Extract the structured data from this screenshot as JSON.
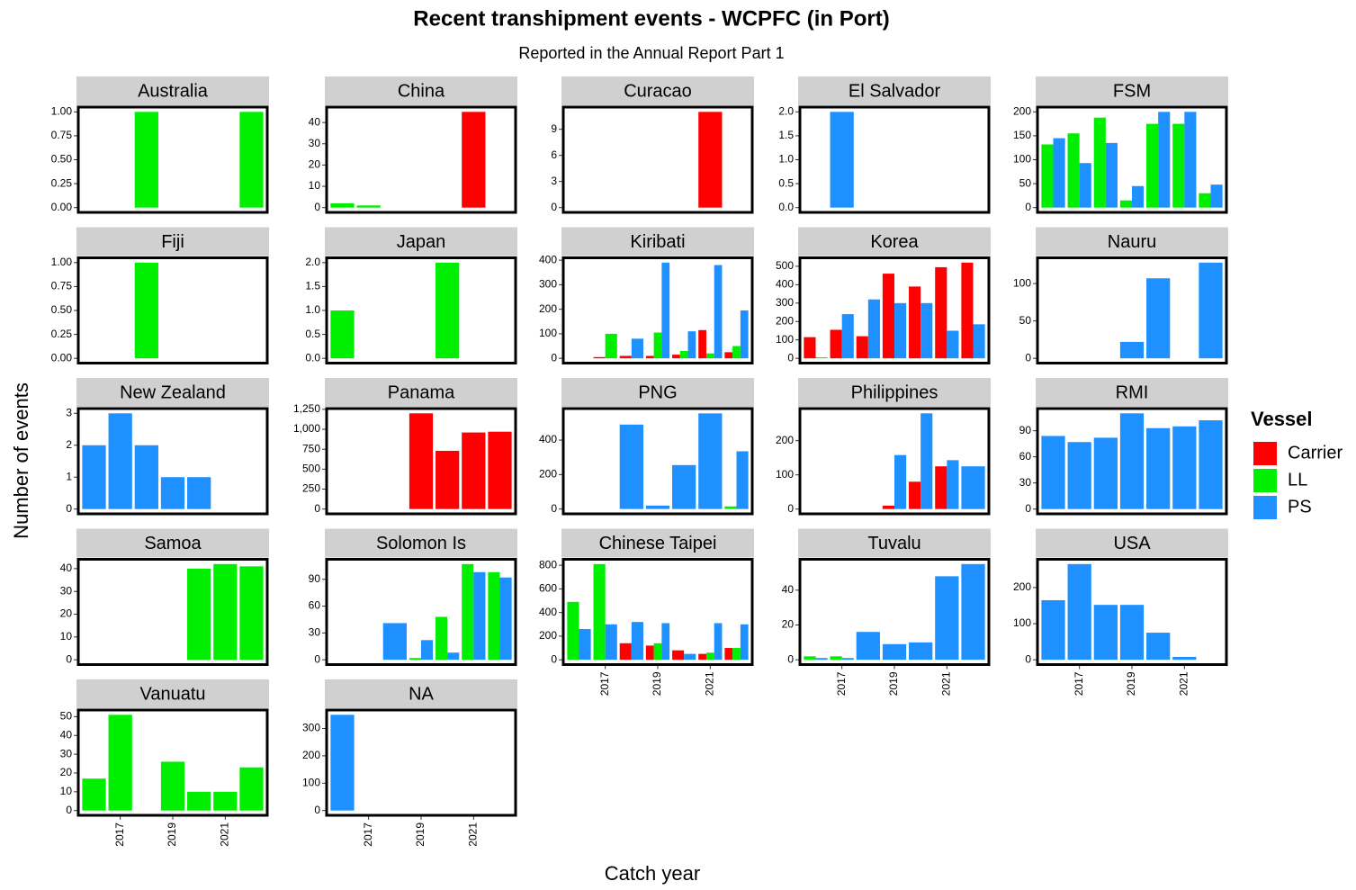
{
  "title": "Recent transhipment events - WCPFC (in Port)",
  "subtitle": "Reported in the Annual Report Part 1",
  "x_label": "Catch year",
  "y_label": "Number of events",
  "legend": {
    "title": "Vessel",
    "position": "right",
    "items": [
      {
        "name": "Carrier",
        "color": "#ff0000"
      },
      {
        "name": "LL",
        "color": "#00ee00"
      },
      {
        "name": "PS",
        "color": "#1e90ff"
      }
    ]
  },
  "chart_data": [
    {
      "type": "bar",
      "title": "Australia",
      "x": [
        2016,
        2017,
        2018,
        2019,
        2020,
        2021,
        2022
      ],
      "xlim": [
        2015.4,
        2022.6
      ],
      "ylim": [
        -0.05,
        1.05
      ],
      "yticks": [
        {
          "value": 0,
          "label": "0.00"
        },
        {
          "value": 0.25,
          "label": "0.25"
        },
        {
          "value": 0.5,
          "label": "0.50"
        },
        {
          "value": 0.75,
          "label": "0.75"
        },
        {
          "value": 1,
          "label": "1.00"
        }
      ],
      "series": [
        {
          "name": "LL",
          "color": "#00ee00",
          "values": [
            null,
            null,
            1,
            null,
            null,
            null,
            1
          ]
        }
      ]
    },
    {
      "type": "bar",
      "title": "China",
      "x": [
        2016,
        2017,
        2018,
        2019,
        2020,
        2021,
        2022
      ],
      "xlim": [
        2015.4,
        2022.6
      ],
      "ylim": [
        -2.25,
        47.25
      ],
      "yticks": [
        0,
        10,
        20,
        30,
        40
      ],
      "series": [
        {
          "name": "Carrier",
          "color": "#ff0000",
          "values": [
            null,
            null,
            null,
            null,
            null,
            45,
            null
          ]
        },
        {
          "name": "LL",
          "color": "#00ee00",
          "values": [
            2,
            1,
            null,
            null,
            null,
            null,
            null
          ]
        }
      ]
    },
    {
      "type": "bar",
      "title": "Curacao",
      "x": [
        2016,
        2017,
        2018,
        2019,
        2020,
        2021,
        2022
      ],
      "xlim": [
        2015.4,
        2022.6
      ],
      "ylim": [
        -0.55,
        11.55
      ],
      "yticks": [
        0,
        3,
        6,
        9
      ],
      "series": [
        {
          "name": "Carrier",
          "color": "#ff0000",
          "values": [
            null,
            null,
            null,
            null,
            null,
            11,
            null
          ]
        }
      ]
    },
    {
      "type": "bar",
      "title": "El Salvador",
      "x": [
        2016,
        2017,
        2018,
        2019,
        2020,
        2021,
        2022
      ],
      "xlim": [
        2015.4,
        2022.6
      ],
      "ylim": [
        -0.1,
        2.1
      ],
      "yticks": [
        {
          "value": 0,
          "label": "0.0"
        },
        {
          "value": 0.5,
          "label": "0.5"
        },
        {
          "value": 1,
          "label": "1.0"
        },
        {
          "value": 1.5,
          "label": "1.5"
        },
        {
          "value": 2,
          "label": "2.0"
        }
      ],
      "series": [
        {
          "name": "PS",
          "color": "#1e90ff",
          "values": [
            null,
            2,
            null,
            null,
            null,
            null,
            null
          ]
        }
      ]
    },
    {
      "type": "bar",
      "title": "FSM",
      "x": [
        2016,
        2017,
        2018,
        2019,
        2020,
        2021,
        2022
      ],
      "xlim": [
        2015.4,
        2022.6
      ],
      "ylim": [
        -10,
        210
      ],
      "yticks": [
        0,
        50,
        100,
        150,
        200
      ],
      "series": [
        {
          "name": "LL",
          "color": "#00ee00",
          "values": [
            132,
            155,
            188,
            15,
            175,
            175,
            30
          ]
        },
        {
          "name": "PS",
          "color": "#1e90ff",
          "values": [
            145,
            93,
            135,
            45,
            200,
            200,
            48
          ]
        }
      ]
    },
    {
      "type": "bar",
      "title": "Fiji",
      "x": [
        2016,
        2017,
        2018,
        2019,
        2020,
        2021,
        2022
      ],
      "xlim": [
        2015.4,
        2022.6
      ],
      "ylim": [
        -0.05,
        1.05
      ],
      "yticks": [
        {
          "value": 0,
          "label": "0.00"
        },
        {
          "value": 0.25,
          "label": "0.25"
        },
        {
          "value": 0.5,
          "label": "0.50"
        },
        {
          "value": 0.75,
          "label": "0.75"
        },
        {
          "value": 1,
          "label": "1.00"
        }
      ],
      "series": [
        {
          "name": "LL",
          "color": "#00ee00",
          "values": [
            null,
            null,
            1,
            null,
            null,
            null,
            null
          ]
        }
      ]
    },
    {
      "type": "bar",
      "title": "Japan",
      "x": [
        2016,
        2017,
        2018,
        2019,
        2020,
        2021,
        2022
      ],
      "xlim": [
        2015.4,
        2022.6
      ],
      "ylim": [
        -0.1,
        2.1
      ],
      "yticks": [
        {
          "value": 0,
          "label": "0.0"
        },
        {
          "value": 0.5,
          "label": "0.5"
        },
        {
          "value": 1,
          "label": "1.0"
        },
        {
          "value": 1.5,
          "label": "1.5"
        },
        {
          "value": 2,
          "label": "2.0"
        }
      ],
      "series": [
        {
          "name": "LL",
          "color": "#00ee00",
          "values": [
            1,
            null,
            null,
            null,
            2,
            null,
            null
          ]
        }
      ]
    },
    {
      "type": "bar",
      "title": "Kiribati",
      "x": [
        2016,
        2017,
        2018,
        2019,
        2020,
        2021,
        2022
      ],
      "xlim": [
        2015.4,
        2022.6
      ],
      "ylim": [
        -19.5,
        409.5
      ],
      "yticks": [
        0,
        100,
        200,
        300,
        400
      ],
      "series": [
        {
          "name": "Carrier",
          "color": "#ff0000",
          "values": [
            null,
            5,
            10,
            10,
            15,
            115,
            25
          ]
        },
        {
          "name": "LL",
          "color": "#00ee00",
          "values": [
            null,
            100,
            null,
            105,
            30,
            20,
            50
          ]
        },
        {
          "name": "PS",
          "color": "#1e90ff",
          "values": [
            null,
            null,
            80,
            390,
            110,
            380,
            195
          ]
        }
      ]
    },
    {
      "type": "bar",
      "title": "Korea",
      "x": [
        2016,
        2017,
        2018,
        2019,
        2020,
        2021,
        2022
      ],
      "xlim": [
        2015.4,
        2022.6
      ],
      "ylim": [
        -26,
        546
      ],
      "yticks": [
        0,
        100,
        200,
        300,
        400,
        500
      ],
      "series": [
        {
          "name": "Carrier",
          "color": "#ff0000",
          "values": [
            115,
            155,
            120,
            460,
            390,
            495,
            520
          ]
        },
        {
          "name": "LL",
          "color": "#00ee00",
          "values": [
            5,
            null,
            null,
            null,
            null,
            null,
            null
          ]
        },
        {
          "name": "PS",
          "color": "#1e90ff",
          "values": [
            null,
            240,
            320,
            300,
            300,
            150,
            185
          ]
        }
      ]
    },
    {
      "type": "bar",
      "title": "Nauru",
      "x": [
        2016,
        2017,
        2018,
        2019,
        2020,
        2021,
        2022
      ],
      "xlim": [
        2015.4,
        2022.6
      ],
      "ylim": [
        -6.4,
        134.4
      ],
      "yticks": [
        0,
        50,
        100
      ],
      "series": [
        {
          "name": "PS",
          "color": "#1e90ff",
          "values": [
            null,
            null,
            null,
            22,
            107,
            null,
            128
          ]
        }
      ]
    },
    {
      "type": "bar",
      "title": "New Zealand",
      "x": [
        2016,
        2017,
        2018,
        2019,
        2020,
        2021,
        2022
      ],
      "xlim": [
        2015.4,
        2022.6
      ],
      "ylim": [
        -0.15,
        3.15
      ],
      "yticks": [
        0,
        1,
        2,
        3
      ],
      "series": [
        {
          "name": "PS",
          "color": "#1e90ff",
          "values": [
            2,
            3,
            2,
            1,
            1,
            null,
            null
          ]
        }
      ]
    },
    {
      "type": "bar",
      "title": "Panama",
      "x": [
        2016,
        2017,
        2018,
        2019,
        2020,
        2021,
        2022
      ],
      "xlim": [
        2015.4,
        2022.6
      ],
      "ylim": [
        -60,
        1260
      ],
      "yticks": [
        0,
        250,
        500,
        750,
        {
          "value": 1000,
          "label": "1,000"
        },
        {
          "value": 1250,
          "label": "1,250"
        }
      ],
      "series": [
        {
          "name": "Carrier",
          "color": "#ff0000",
          "values": [
            null,
            null,
            null,
            1200,
            730,
            960,
            970
          ]
        }
      ]
    },
    {
      "type": "bar",
      "title": "PNG",
      "x": [
        2016,
        2017,
        2018,
        2019,
        2020,
        2021,
        2022
      ],
      "xlim": [
        2015.4,
        2022.6
      ],
      "ylim": [
        -28,
        583
      ],
      "yticks": [
        0,
        200,
        400
      ],
      "series": [
        {
          "name": "LL",
          "color": "#00ee00",
          "values": [
            null,
            null,
            null,
            null,
            null,
            null,
            15
          ]
        },
        {
          "name": "PS",
          "color": "#1e90ff",
          "values": [
            null,
            null,
            490,
            20,
            255,
            555,
            335
          ]
        }
      ]
    },
    {
      "type": "bar",
      "title": "Philippines",
      "x": [
        2016,
        2017,
        2018,
        2019,
        2020,
        2021,
        2022
      ],
      "xlim": [
        2015.4,
        2022.6
      ],
      "ylim": [
        -14,
        294
      ],
      "yticks": [
        0,
        100,
        200
      ],
      "series": [
        {
          "name": "Carrier",
          "color": "#ff0000",
          "values": [
            null,
            null,
            null,
            10,
            80,
            125,
            null
          ]
        },
        {
          "name": "PS",
          "color": "#1e90ff",
          "values": [
            null,
            null,
            null,
            158,
            280,
            143,
            125
          ]
        }
      ]
    },
    {
      "type": "bar",
      "title": "RMI",
      "x": [
        2016,
        2017,
        2018,
        2019,
        2020,
        2021,
        2022
      ],
      "xlim": [
        2015.4,
        2022.6
      ],
      "ylim": [
        -5.5,
        115.5
      ],
      "yticks": [
        0,
        30,
        60,
        90
      ],
      "series": [
        {
          "name": "PS",
          "color": "#1e90ff",
          "values": [
            84,
            77,
            82,
            110,
            93,
            95,
            102
          ]
        }
      ]
    },
    {
      "type": "bar",
      "title": "Samoa",
      "x": [
        2016,
        2017,
        2018,
        2019,
        2020,
        2021,
        2022
      ],
      "xlim": [
        2015.4,
        2022.6
      ],
      "ylim": [
        -2.1,
        44.1
      ],
      "yticks": [
        0,
        10,
        20,
        30,
        40
      ],
      "series": [
        {
          "name": "LL",
          "color": "#00ee00",
          "values": [
            null,
            null,
            null,
            null,
            40,
            42,
            41
          ]
        }
      ]
    },
    {
      "type": "bar",
      "title": "Solomon Is",
      "x": [
        2016,
        2017,
        2018,
        2019,
        2020,
        2021,
        2022
      ],
      "xlim": [
        2015.4,
        2022.6
      ],
      "ylim": [
        -5.35,
        112.35
      ],
      "yticks": [
        0,
        30,
        60,
        90
      ],
      "series": [
        {
          "name": "LL",
          "color": "#00ee00",
          "values": [
            null,
            null,
            null,
            2,
            48,
            107,
            98
          ]
        },
        {
          "name": "PS",
          "color": "#1e90ff",
          "values": [
            null,
            null,
            41,
            22,
            8,
            98,
            92
          ]
        }
      ]
    },
    {
      "type": "bar",
      "title": "Chinese Taipei",
      "x": [
        2016,
        2017,
        2018,
        2019,
        2020,
        2021,
        2022
      ],
      "xlim": [
        2015.4,
        2022.6
      ],
      "ylim": [
        -40.5,
        850.5
      ],
      "yticks": [
        0,
        200,
        400,
        600,
        800
      ],
      "xticks": [
        2017,
        2019,
        2021
      ],
      "series": [
        {
          "name": "Carrier",
          "color": "#ff0000",
          "values": [
            null,
            null,
            140,
            120,
            80,
            50,
            100
          ]
        },
        {
          "name": "LL",
          "color": "#00ee00",
          "values": [
            490,
            810,
            null,
            140,
            null,
            60,
            100
          ]
        },
        {
          "name": "PS",
          "color": "#1e90ff",
          "values": [
            260,
            300,
            320,
            310,
            50,
            310,
            300
          ]
        }
      ]
    },
    {
      "type": "bar",
      "title": "Tuvalu",
      "x": [
        2016,
        2017,
        2018,
        2019,
        2020,
        2021,
        2022
      ],
      "xlim": [
        2015.4,
        2022.6
      ],
      "ylim": [
        -2.75,
        57.75
      ],
      "yticks": [
        0,
        20,
        40
      ],
      "xticks": [
        2017,
        2019,
        2021
      ],
      "series": [
        {
          "name": "LL",
          "color": "#00ee00",
          "values": [
            2,
            2,
            null,
            null,
            null,
            null,
            null
          ]
        },
        {
          "name": "PS",
          "color": "#1e90ff",
          "values": [
            1,
            1,
            16,
            9,
            10,
            48,
            55
          ]
        }
      ]
    },
    {
      "type": "bar",
      "title": "USA",
      "x": [
        2016,
        2017,
        2018,
        2019,
        2020,
        2021,
        2022
      ],
      "xlim": [
        2015.4,
        2022.6
      ],
      "ylim": [
        -13.25,
        278.25
      ],
      "yticks": [
        0,
        100,
        200
      ],
      "xticks": [
        2017,
        2019,
        2021
      ],
      "series": [
        {
          "name": "PS",
          "color": "#1e90ff",
          "values": [
            165,
            265,
            152,
            152,
            75,
            8,
            null
          ]
        }
      ]
    },
    {
      "type": "bar",
      "title": "Vanuatu",
      "x": [
        2016,
        2017,
        2018,
        2019,
        2020,
        2021,
        2022
      ],
      "xlim": [
        2015.4,
        2022.6
      ],
      "ylim": [
        -2.55,
        53.55
      ],
      "yticks": [
        0,
        10,
        20,
        30,
        40,
        50
      ],
      "xticks": [
        2017,
        2019,
        2021
      ],
      "series": [
        {
          "name": "LL",
          "color": "#00ee00",
          "values": [
            17,
            51,
            null,
            26,
            10,
            10,
            23
          ]
        }
      ]
    },
    {
      "type": "bar",
      "title": "NA",
      "x": [
        2016,
        2017,
        2018,
        2019,
        2020,
        2021,
        2022
      ],
      "xlim": [
        2015.4,
        2022.6
      ],
      "ylim": [
        -17.5,
        367.5
      ],
      "yticks": [
        0,
        100,
        200,
        300
      ],
      "xticks": [
        2017,
        2019,
        2021
      ],
      "series": [
        {
          "name": "PS",
          "color": "#1e90ff",
          "values": [
            350,
            null,
            null,
            null,
            null,
            null,
            null
          ]
        }
      ]
    }
  ]
}
